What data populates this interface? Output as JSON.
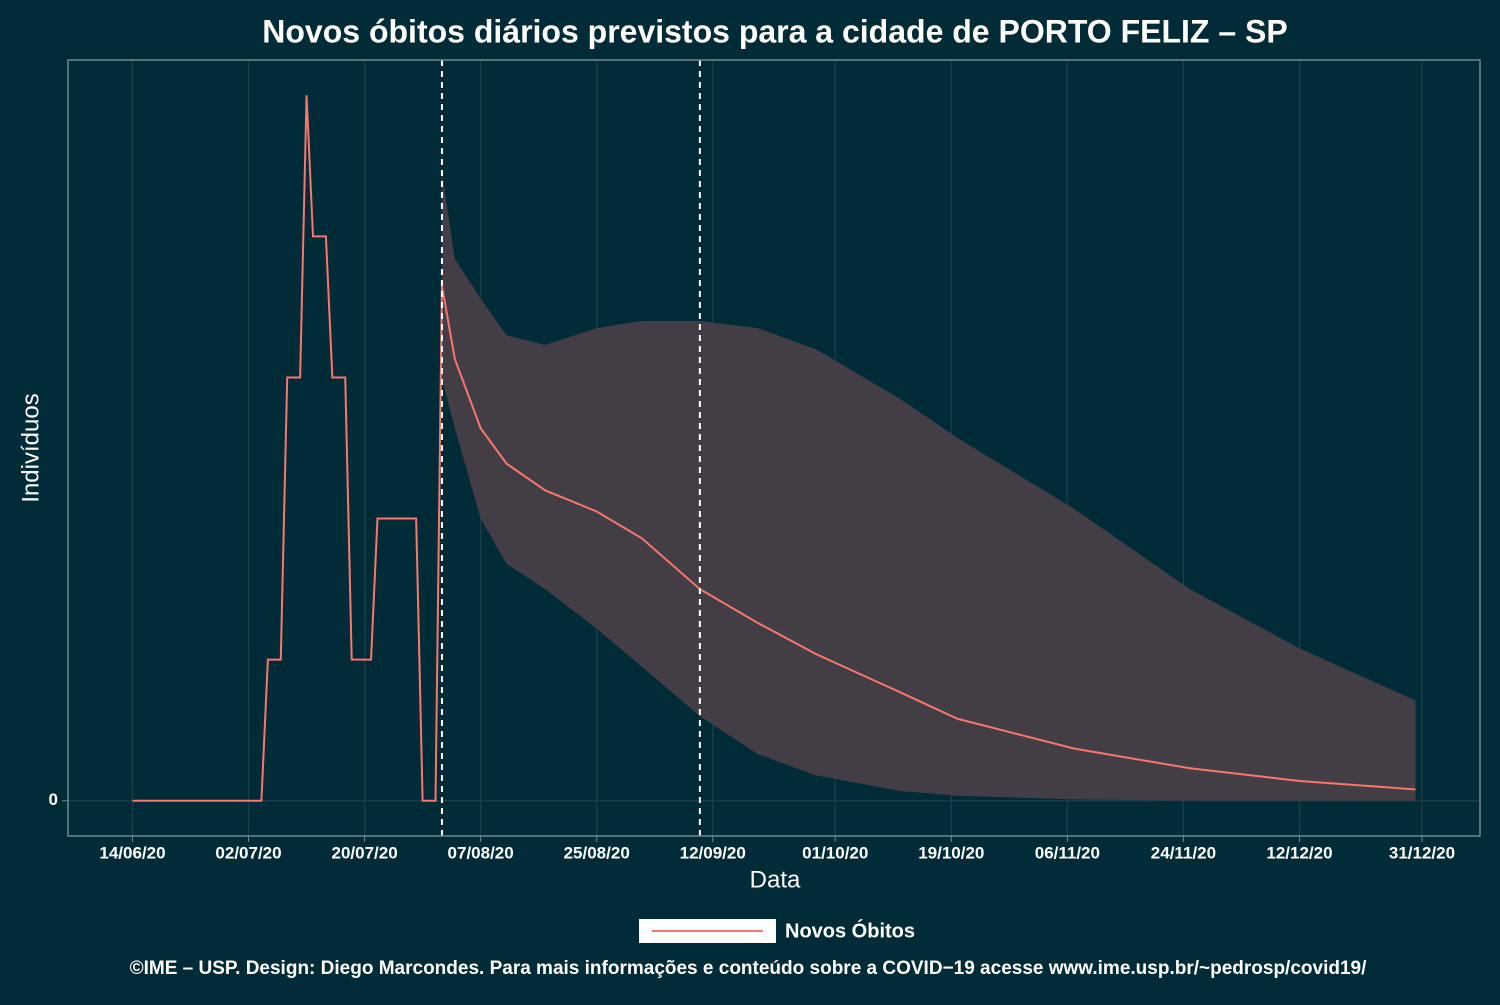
{
  "chart_data": {
    "type": "line",
    "title": "Novos óbitos diários previstos para a cidade de PORTO FELIZ – SP",
    "x_label": "Data",
    "y_label": "Indivíduos",
    "caption": "©IME – USP. Design: Diego Marcondes. Para mais informações e conteúdo sobre a COVID−19 acesse www.ime.usp.br/~pedrosp/covid19/",
    "xlim": [
      "04/06/20",
      "09/01/21"
    ],
    "xticks": [
      "14/06/20",
      "02/07/20",
      "20/07/20",
      "07/08/20",
      "25/08/20",
      "12/09/20",
      "01/10/20",
      "19/10/20",
      "06/11/20",
      "24/11/20",
      "12/12/20",
      "31/12/20"
    ],
    "ylim": [
      -0.25,
      5.25
    ],
    "yticks": [
      0
    ],
    "grid": true,
    "legend": "bottom",
    "vlines": [
      "01/08/20",
      "10/09/20"
    ],
    "series": [
      {
        "name": "Novos Óbitos",
        "color": "#f8766d",
        "x": [
          "14/06/20",
          "04/07/20",
          "05/07/20",
          "07/07/20",
          "08/07/20",
          "10/07/20",
          "11/07/20",
          "12/07/20",
          "14/07/20",
          "15/07/20",
          "17/07/20",
          "18/07/20",
          "21/07/20",
          "22/07/20",
          "28/07/20",
          "29/07/20",
          "31/07/20",
          "01/08/20",
          "03/08/20",
          "07/08/20",
          "11/08/20",
          "17/08/20",
          "25/08/20",
          "01/09/20",
          "10/09/20",
          "19/09/20",
          "28/09/20",
          "11/10/20",
          "20/10/20",
          "07/11/20",
          "25/11/20",
          "12/12/20",
          "30/12/20"
        ],
        "values": [
          0,
          0,
          1,
          1,
          3,
          3,
          5,
          4,
          4,
          3,
          3,
          1,
          1,
          2,
          2,
          0,
          0,
          3.65,
          3.13,
          2.64,
          2.39,
          2.2,
          2.05,
          1.86,
          1.5,
          1.26,
          1.04,
          0.77,
          0.58,
          0.37,
          0.23,
          0.14,
          0.08
        ]
      }
    ],
    "band": {
      "color": "#433e45",
      "x": [
        "01/08/20",
        "03/08/20",
        "07/08/20",
        "11/08/20",
        "17/08/20",
        "25/08/20",
        "01/09/20",
        "10/09/20",
        "19/09/20",
        "28/09/20",
        "11/10/20",
        "20/10/20",
        "07/11/20",
        "25/11/20",
        "12/12/20",
        "30/12/20"
      ],
      "lower": [
        2.99,
        2.64,
        2.0,
        1.68,
        1.5,
        1.22,
        0.95,
        0.6,
        0.33,
        0.18,
        0.07,
        0.035,
        0.01,
        0,
        0,
        0
      ],
      "upper": [
        4.45,
        3.84,
        3.56,
        3.3,
        3.23,
        3.35,
        3.4,
        3.4,
        3.35,
        3.2,
        2.85,
        2.57,
        2.07,
        1.5,
        1.08,
        0.71
      ]
    }
  }
}
